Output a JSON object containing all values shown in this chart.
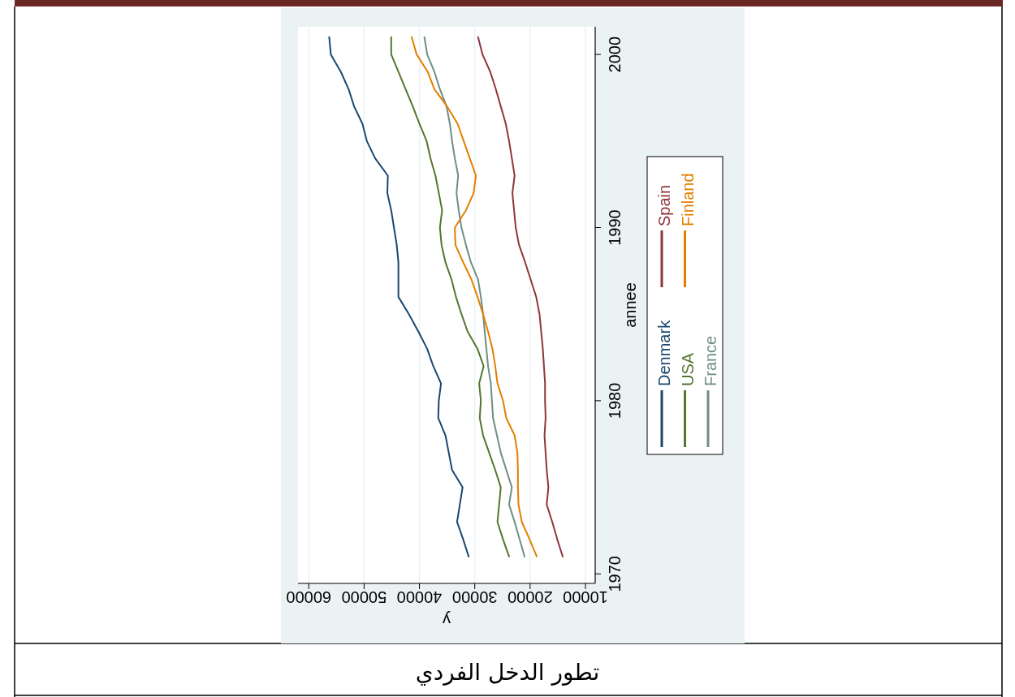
{
  "chart_data": {
    "type": "line",
    "orientation": "horizontal",
    "xlabel": "y",
    "ylabel": "annee",
    "x": [
      1971,
      1972,
      1973,
      1974,
      1975,
      1976,
      1977,
      1978,
      1979,
      1980,
      1981,
      1982,
      1983,
      1984,
      1985,
      1986,
      1987,
      1988,
      1989,
      1990,
      1991,
      1992,
      1993,
      1994,
      1995,
      1996,
      1997,
      1998,
      1999,
      2000,
      2001
    ],
    "xlim": [
      61940,
      8240
    ],
    "ylim": [
      1969.45,
      2001.6
    ],
    "xticks": [
      10000,
      20000,
      30000,
      40000,
      50000,
      60000
    ],
    "yticks": [
      1970,
      1980,
      1990,
      2000
    ],
    "grid": "x",
    "legend": "right",
    "series": [
      {
        "name": "Denmark",
        "color": "#1a476f",
        "values": [
          31100,
          32100,
          33200,
          32700,
          32200,
          34100,
          34700,
          35300,
          36600,
          36500,
          36100,
          37500,
          38600,
          40200,
          41900,
          43800,
          43800,
          43800,
          44100,
          44600,
          45100,
          45800,
          45700,
          48000,
          49500,
          50300,
          51800,
          52800,
          54200,
          56000,
          56300
        ]
      },
      {
        "name": "USA",
        "color": "#55752f",
        "values": [
          23800,
          24900,
          25900,
          25600,
          25300,
          26300,
          27400,
          28500,
          29100,
          28900,
          29200,
          28400,
          29500,
          31300,
          32400,
          33400,
          34200,
          35300,
          36000,
          36300,
          35900,
          36500,
          37100,
          38000,
          38700,
          40000,
          41200,
          42500,
          43800,
          45100,
          45100
        ]
      },
      {
        "name": "France",
        "color": "#6e8e84",
        "values": [
          21000,
          21900,
          22800,
          23800,
          23300,
          24300,
          25300,
          26000,
          26700,
          26900,
          27100,
          27600,
          27900,
          28200,
          28500,
          28900,
          29400,
          30700,
          31600,
          32400,
          32900,
          33300,
          33000,
          33600,
          34100,
          34500,
          35100,
          36300,
          37300,
          38600,
          39100
        ]
      },
      {
        "name": "Spain",
        "color": "#90353b",
        "values": [
          14100,
          15100,
          16000,
          17000,
          16700,
          17000,
          17200,
          17400,
          17200,
          17300,
          17300,
          17500,
          17700,
          18000,
          18300,
          18900,
          19900,
          20900,
          22000,
          22600,
          22900,
          23200,
          22800,
          23300,
          23800,
          24400,
          25300,
          26200,
          27200,
          28600,
          29400
        ]
      },
      {
        "name": "Finland",
        "color": "#e37e00",
        "values": [
          18800,
          20100,
          21500,
          22100,
          22200,
          22200,
          22300,
          22800,
          24300,
          24900,
          25900,
          26300,
          26800,
          27600,
          28500,
          29500,
          30600,
          32100,
          33500,
          33600,
          31600,
          30200,
          29800,
          30900,
          32000,
          33100,
          35000,
          37300,
          38500,
          40500,
          41400
        ]
      }
    ],
    "annotations": [
      "تطور الدخل الفردي"
    ]
  }
}
